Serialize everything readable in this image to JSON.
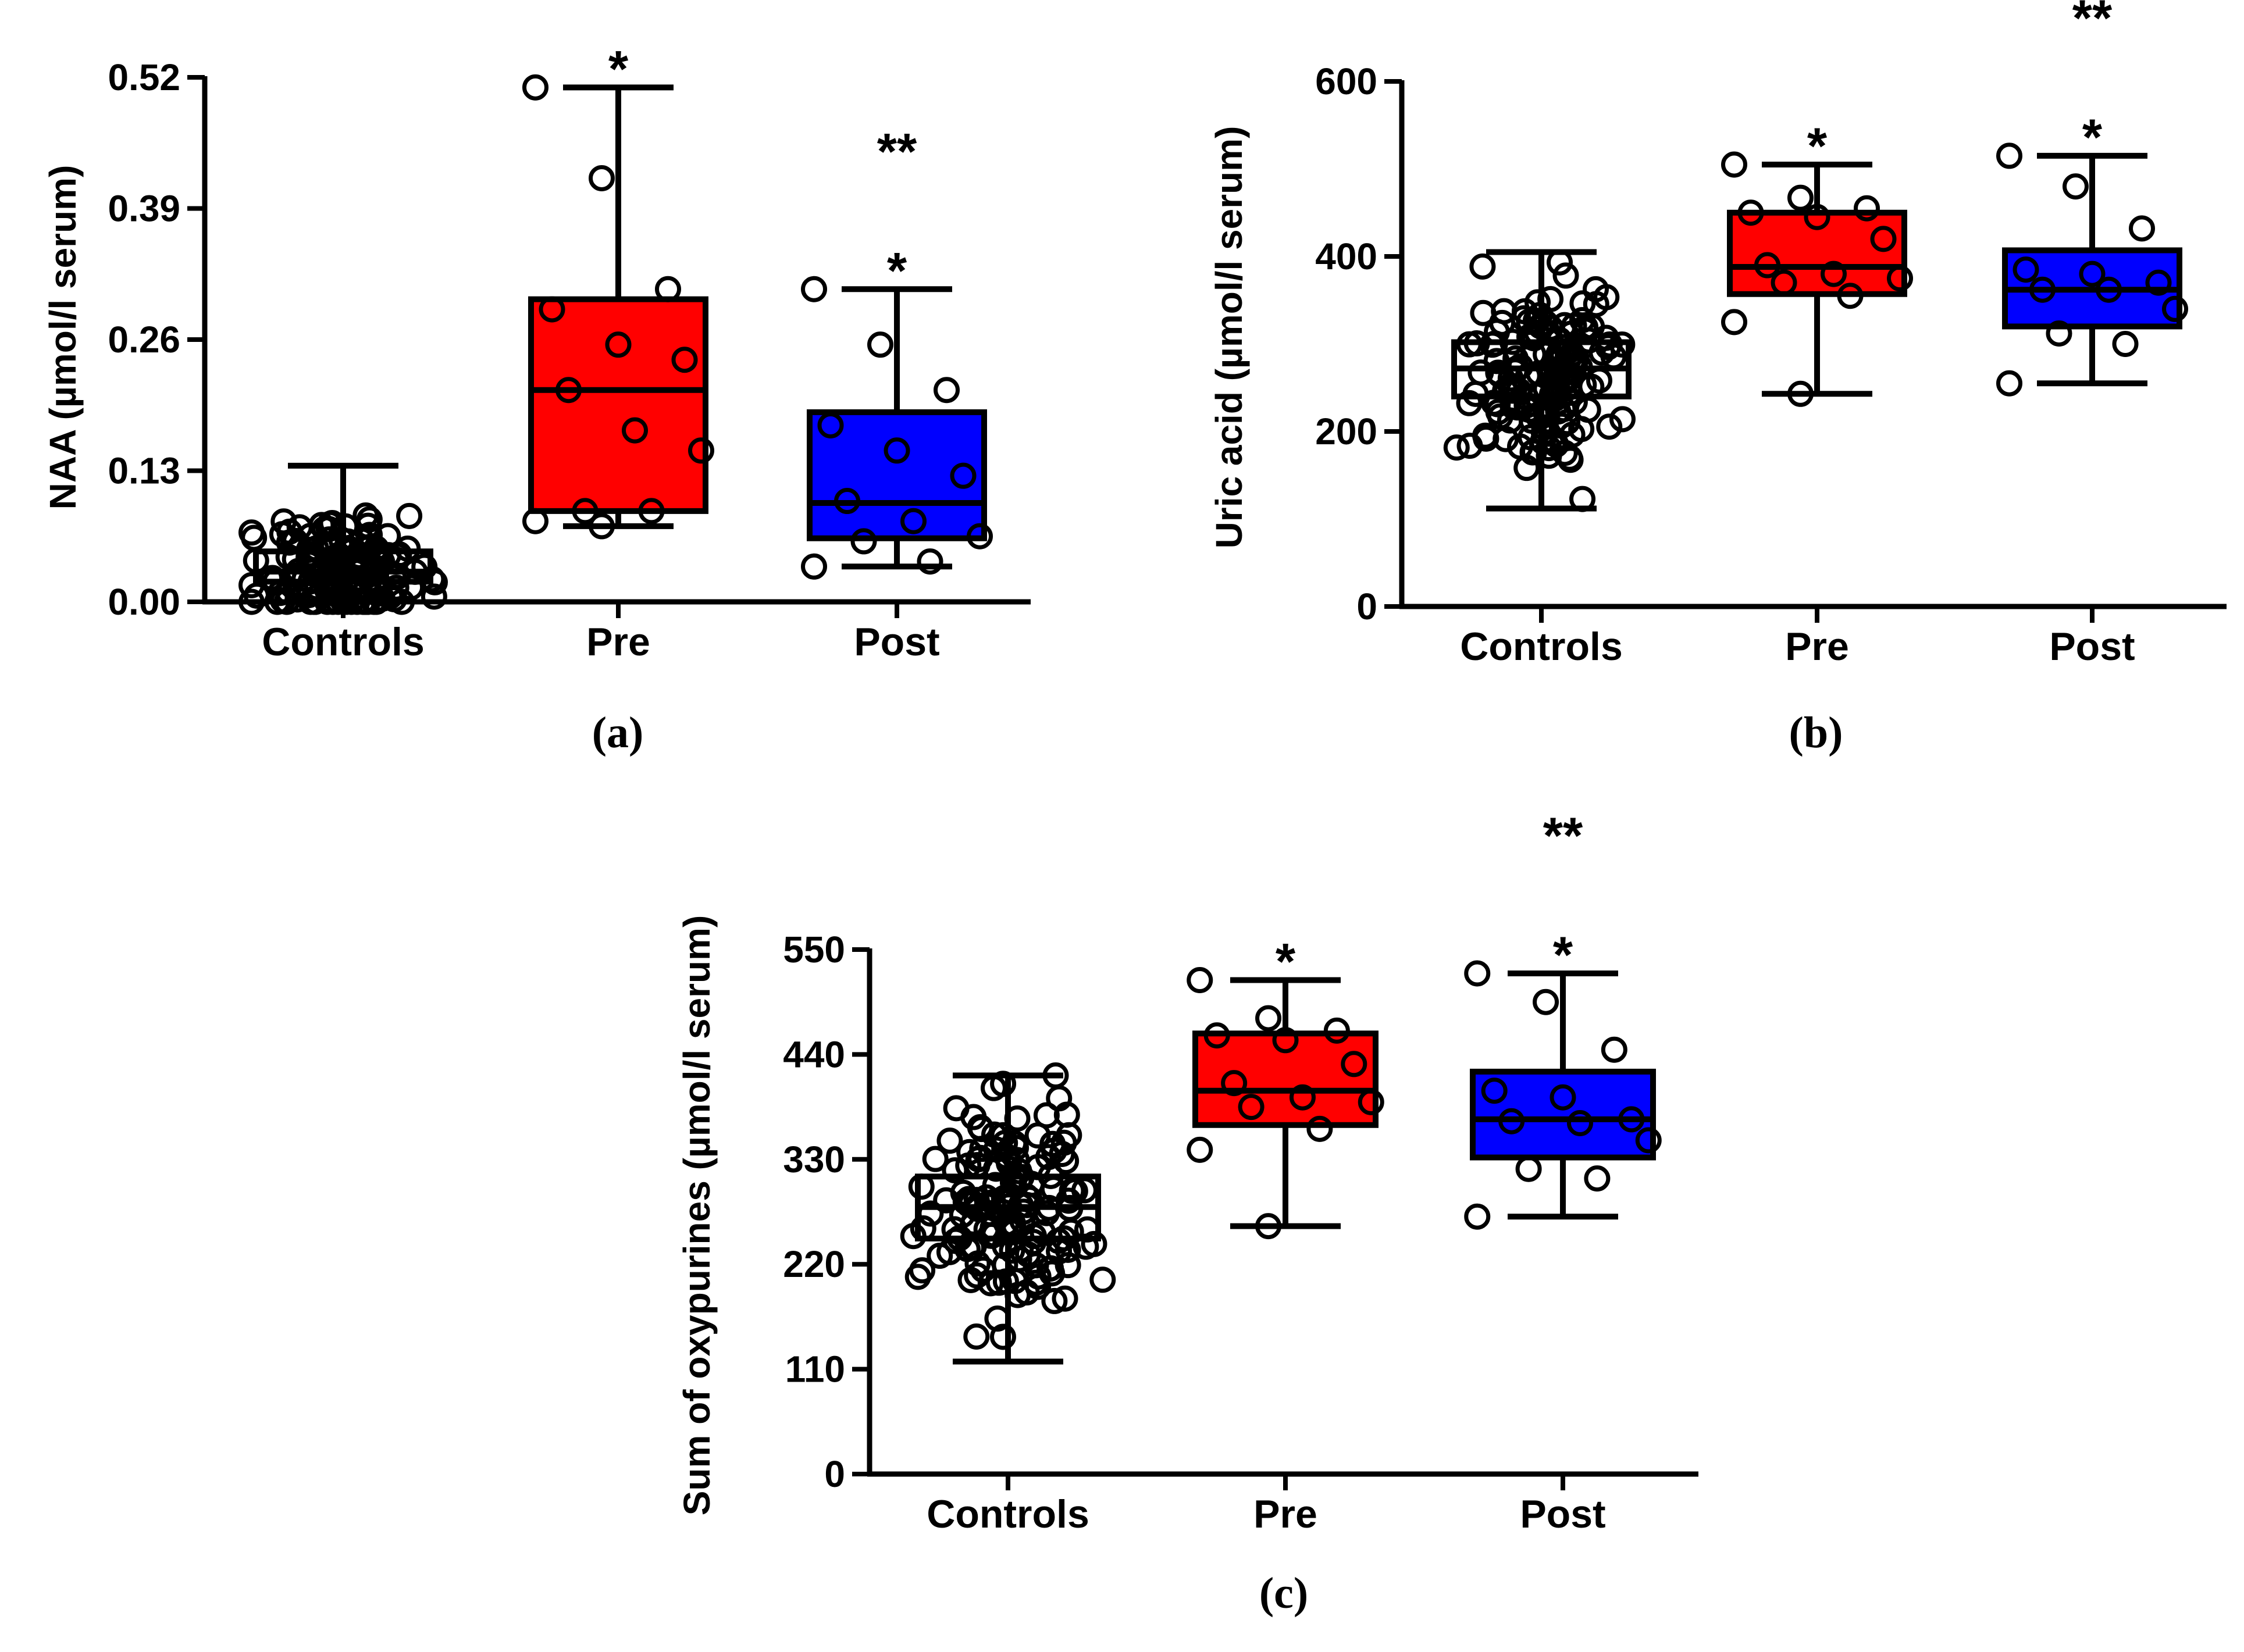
{
  "colors": {
    "controls": "#ffffff",
    "pre": "#ff0000",
    "post": "#0000ff",
    "ink": "#000000"
  },
  "chart_data": [
    {
      "type": "box",
      "panel_label": "(a)",
      "title": "",
      "xlabel": "",
      "ylabel": "NAA (µmol/l serum)",
      "ylim": [
        0,
        0.52
      ],
      "yticks": [
        0.0,
        0.13,
        0.26,
        0.39,
        0.52
      ],
      "ytick_labels": [
        "0.00",
        "0.13",
        "0.26",
        "0.39",
        "0.52"
      ],
      "categories": [
        "Controls",
        "Pre",
        "Post"
      ],
      "boxes": [
        {
          "name": "Controls",
          "whisker_min": 0.0,
          "q1": 0.02,
          "median": 0.03,
          "q3": 0.05,
          "whisker_max": 0.135,
          "markers": []
        },
        {
          "name": "Pre",
          "whisker_min": 0.075,
          "q1": 0.09,
          "median": 0.21,
          "q3": 0.3,
          "whisker_max": 0.51,
          "markers": [
            "*"
          ],
          "points": [
            0.51,
            0.42,
            0.31,
            0.29,
            0.255,
            0.24,
            0.21,
            0.17,
            0.15,
            0.09,
            0.09,
            0.08,
            0.075
          ]
        },
        {
          "name": "Post",
          "whisker_min": 0.035,
          "q1": 0.063,
          "median": 0.098,
          "q3": 0.188,
          "whisker_max": 0.31,
          "markers": [
            "*",
            "**"
          ],
          "points": [
            0.31,
            0.255,
            0.21,
            0.175,
            0.15,
            0.125,
            0.1,
            0.08,
            0.065,
            0.06,
            0.04,
            0.035
          ]
        }
      ]
    },
    {
      "type": "box",
      "panel_label": "(b)",
      "title": "",
      "xlabel": "",
      "ylabel": "Uric acid (µmol/l serum)",
      "ylim": [
        0,
        600
      ],
      "yticks": [
        0,
        200,
        400,
        600
      ],
      "ytick_labels": [
        "0",
        "200",
        "400",
        "600"
      ],
      "categories": [
        "Controls",
        "Pre",
        "Post"
      ],
      "boxes": [
        {
          "name": "Controls",
          "whisker_min": 112,
          "q1": 240,
          "median": 272,
          "q3": 302,
          "whisker_max": 405,
          "markers": []
        },
        {
          "name": "Pre",
          "whisker_min": 243,
          "q1": 357,
          "median": 388,
          "q3": 450,
          "whisker_max": 505,
          "markers": [
            "*"
          ],
          "points": [
            505,
            467,
            455,
            450,
            445,
            420,
            390,
            380,
            375,
            370,
            355,
            325,
            243
          ]
        },
        {
          "name": "Post",
          "whisker_min": 255,
          "q1": 320,
          "median": 362,
          "q3": 407,
          "whisker_max": 515,
          "markers": [
            "*",
            "**"
          ],
          "points": [
            515,
            480,
            432,
            385,
            380,
            370,
            362,
            362,
            340,
            312,
            300,
            255
          ]
        }
      ]
    },
    {
      "type": "box",
      "panel_label": "(c)",
      "title": "",
      "xlabel": "",
      "ylabel": "Sum of oxypurines (µmol/l serum)",
      "ylim": [
        0,
        550
      ],
      "yticks": [
        0,
        110,
        220,
        330,
        440,
        550
      ],
      "ytick_labels": [
        "0",
        "110",
        "220",
        "330",
        "440",
        "550"
      ],
      "categories": [
        "Controls",
        "Pre",
        "Post"
      ],
      "boxes": [
        {
          "name": "Controls",
          "whisker_min": 118,
          "q1": 247,
          "median": 280,
          "q3": 312,
          "whisker_max": 418,
          "markers": []
        },
        {
          "name": "Pre",
          "whisker_min": 260,
          "q1": 366,
          "median": 402,
          "q3": 462,
          "whisker_max": 518,
          "markers": [
            "*"
          ],
          "points": [
            518,
            478,
            465,
            460,
            455,
            430,
            410,
            395,
            390,
            385,
            362,
            340,
            260
          ]
        },
        {
          "name": "Post",
          "whisker_min": 270,
          "q1": 332,
          "median": 372,
          "q3": 422,
          "whisker_max": 525,
          "markers": [
            "*",
            "**"
          ],
          "points": [
            525,
            495,
            445,
            402,
            395,
            372,
            370,
            368,
            350,
            320,
            310,
            270
          ]
        }
      ]
    }
  ]
}
